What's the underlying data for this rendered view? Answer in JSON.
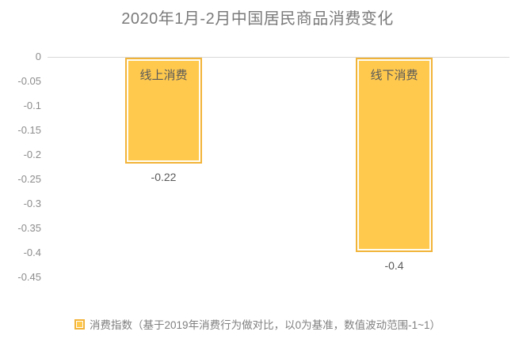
{
  "chart_data": {
    "type": "bar",
    "title": "2020年1月-2月中国居民商品消费变化",
    "categories": [
      "线上消费",
      "线下消费"
    ],
    "series": [
      {
        "name": "消费指数",
        "values": [
          -0.22,
          -0.4
        ]
      }
    ],
    "values": [
      -0.22,
      -0.4
    ],
    "value_labels": [
      "-0.22",
      "-0.4"
    ],
    "yticks": [
      0,
      -0.05,
      -0.1,
      -0.15,
      -0.2,
      -0.25,
      -0.3,
      -0.35,
      -0.4,
      -0.45
    ],
    "ytick_labels": [
      "0",
      "-0.05",
      "-0.1",
      "-0.15",
      "-0.2",
      "-0.25",
      "-0.3",
      "-0.35",
      "-0.4",
      "-0.45"
    ],
    "ylim": [
      -0.45,
      0
    ],
    "xlabel": "",
    "ylabel": "",
    "grid": false,
    "legend": {
      "position": "bottom",
      "label": "消费指数（基于2019年消费行为做对比，以0为基准，数值波动范围-1~1）"
    },
    "colors": {
      "bar_fill": "#FFC94E",
      "bar_border": "#F2B339",
      "bar_inner_line": "#FFFDF5",
      "axis_line": "#D9D9D9",
      "title_text": "#7A7A7A",
      "tick_text": "#8C8C8C",
      "label_text": "#595959",
      "legend_text": "#808080"
    }
  }
}
